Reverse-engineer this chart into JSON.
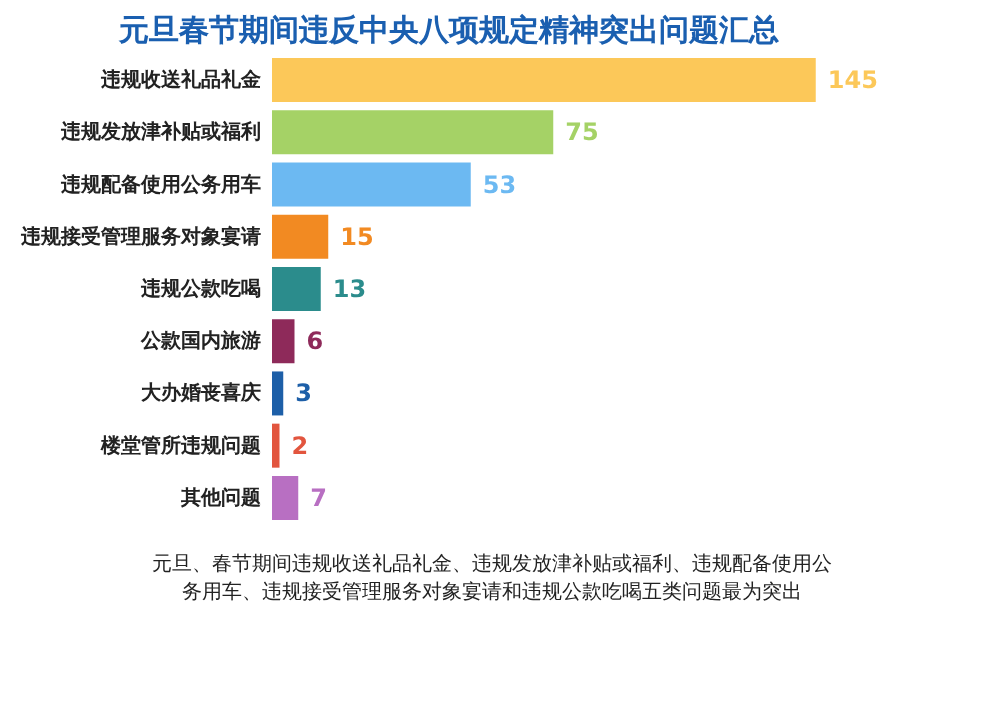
{
  "chart_data": {
    "type": "bar",
    "orientation": "horizontal",
    "title": "元旦春节期间违反中央八项规定精神突出问题汇总",
    "categories": [
      "违规收送礼品礼金",
      "违规发放津补贴或福利",
      "违规配备使用公务用车",
      "违规接受管理服务对象宴请",
      "违规公款吃喝",
      "公款国内旅游",
      "大办婚丧喜庆",
      "楼堂管所违规问题",
      "其他问题"
    ],
    "values": [
      145,
      75,
      53,
      15,
      13,
      6,
      3,
      2,
      7
    ],
    "colors": [
      "#fcc859",
      "#a5d266",
      "#6cb9f2",
      "#f28a22",
      "#2b8c8c",
      "#8e2a5a",
      "#1d5fa8",
      "#e2553e",
      "#b86fc2"
    ],
    "data_labels": true,
    "annotations": [
      "元旦、春节期间违规收送礼品礼金、违规发放津补贴或福利、违规配备使用公务用车、违规接受管理服务对象宴请和违规公款吃喝五类问题最为突出"
    ]
  }
}
